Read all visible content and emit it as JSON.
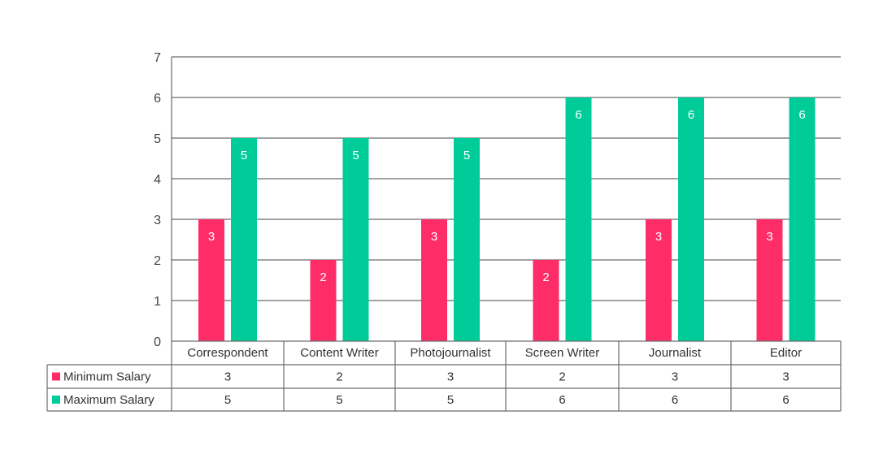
{
  "chart_data": {
    "type": "bar",
    "categories": [
      "Correspondent",
      "Content Writer",
      "Photojournalist",
      "Screen Writer",
      "Journalist",
      "Editor"
    ],
    "series": [
      {
        "name": "Minimum Salary",
        "values": [
          3,
          2,
          3,
          2,
          3,
          3
        ],
        "color": "#ff2d67"
      },
      {
        "name": "Maximum Salary",
        "values": [
          5,
          5,
          5,
          6,
          6,
          6
        ],
        "color": "#00cc99"
      }
    ],
    "yticks": [
      "0",
      "1",
      "2",
      "3",
      "4",
      "5",
      "6",
      "7"
    ],
    "ylim": [
      0,
      7
    ],
    "title": "",
    "xlabel": "",
    "ylabel": "",
    "grid": true,
    "legend": "data table"
  }
}
